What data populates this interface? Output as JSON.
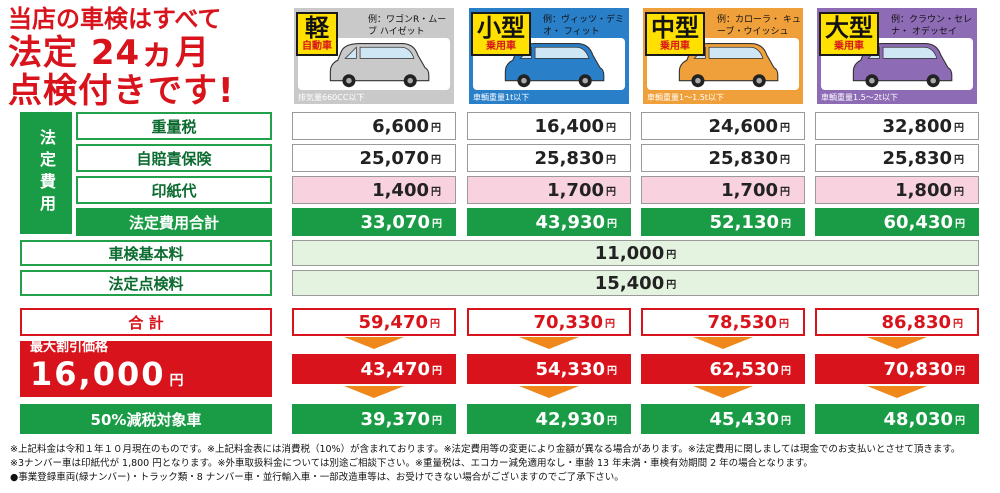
{
  "headline": {
    "line1": "当店の車検はすべて",
    "line2": "法定 24ヵ月",
    "line3": "点検付きです!"
  },
  "classes": [
    {
      "name": "軽",
      "sub": "自動車",
      "example": "例：ワゴンR・ムーブ ハイゼット",
      "weight": "排気量660CC以下",
      "color": "#c9c9c9"
    },
    {
      "name": "小型",
      "sub": "乗用車",
      "example": "例：ヴィッツ・デミオ・ フィット",
      "weight": "車輌重量1t以下",
      "color": "#2a7fc9"
    },
    {
      "name": "中型",
      "sub": "乗用車",
      "example": "例：カローラ・ キューブ・ウイッシュ",
      "weight": "車輌重量1～1.5t以下",
      "color": "#f0a03a"
    },
    {
      "name": "大型",
      "sub": "乗用車",
      "example": "例：クラウン・セレナ・ オデッセイ",
      "weight": "車輌重量1.5～2t以下",
      "color": "#8e6bb5"
    }
  ],
  "legal_label": "法定費用",
  "yen": "円",
  "rows": {
    "weight_tax": {
      "label": "重量税",
      "values": [
        "6,600",
        "16,400",
        "24,600",
        "32,800"
      ]
    },
    "insurance": {
      "label": "自賠責保険",
      "values": [
        "25,070",
        "25,830",
        "25,830",
        "25,830"
      ]
    },
    "stamp": {
      "label": "印紙代",
      "values": [
        "1,400",
        "1,700",
        "1,700",
        "1,800"
      ]
    },
    "legal_total": {
      "label": "法定費用合計",
      "values": [
        "33,070",
        "43,930",
        "52,130",
        "60,430"
      ]
    },
    "basic_fee": {
      "label": "車検基本料",
      "value": "11,000"
    },
    "inspection_fee": {
      "label": "法定点検料",
      "value": "15,400"
    },
    "total": {
      "label": "合 計",
      "values": [
        "59,470",
        "70,330",
        "78,530",
        "86,830"
      ]
    },
    "max_discount": {
      "label": "最大割引価格",
      "amount": "16,000",
      "yen": "円",
      "values": [
        "43,470",
        "54,330",
        "62,530",
        "70,830"
      ]
    },
    "tax_reduction": {
      "label": "50%減税対象車",
      "values": [
        "39,370",
        "42,930",
        "45,430",
        "48,030"
      ]
    }
  },
  "notes": [
    "※上記料金は令和１年１０月現在のものです。※上記料金表には消費税（10%）が含まれております。※法定費用等の変更により金額が異なる場合があります。※法定費用に関しましては現金でのお支払いとさせて頂きます。",
    "※3ナンバー車は印紙代が 1,800 円となります。※外車取扱料金については別途ご相談下さい。※重量税は、エコカー減免適用なし・車齢 13 年未満・車検有効期間 2 年の場合となります。",
    "●事業登録車両(緑ナンバー)・トラック類・8 ナンバー車・並行輸入車・一部改造車等は、お受けできない場合がございますのでご了承下さい。"
  ]
}
